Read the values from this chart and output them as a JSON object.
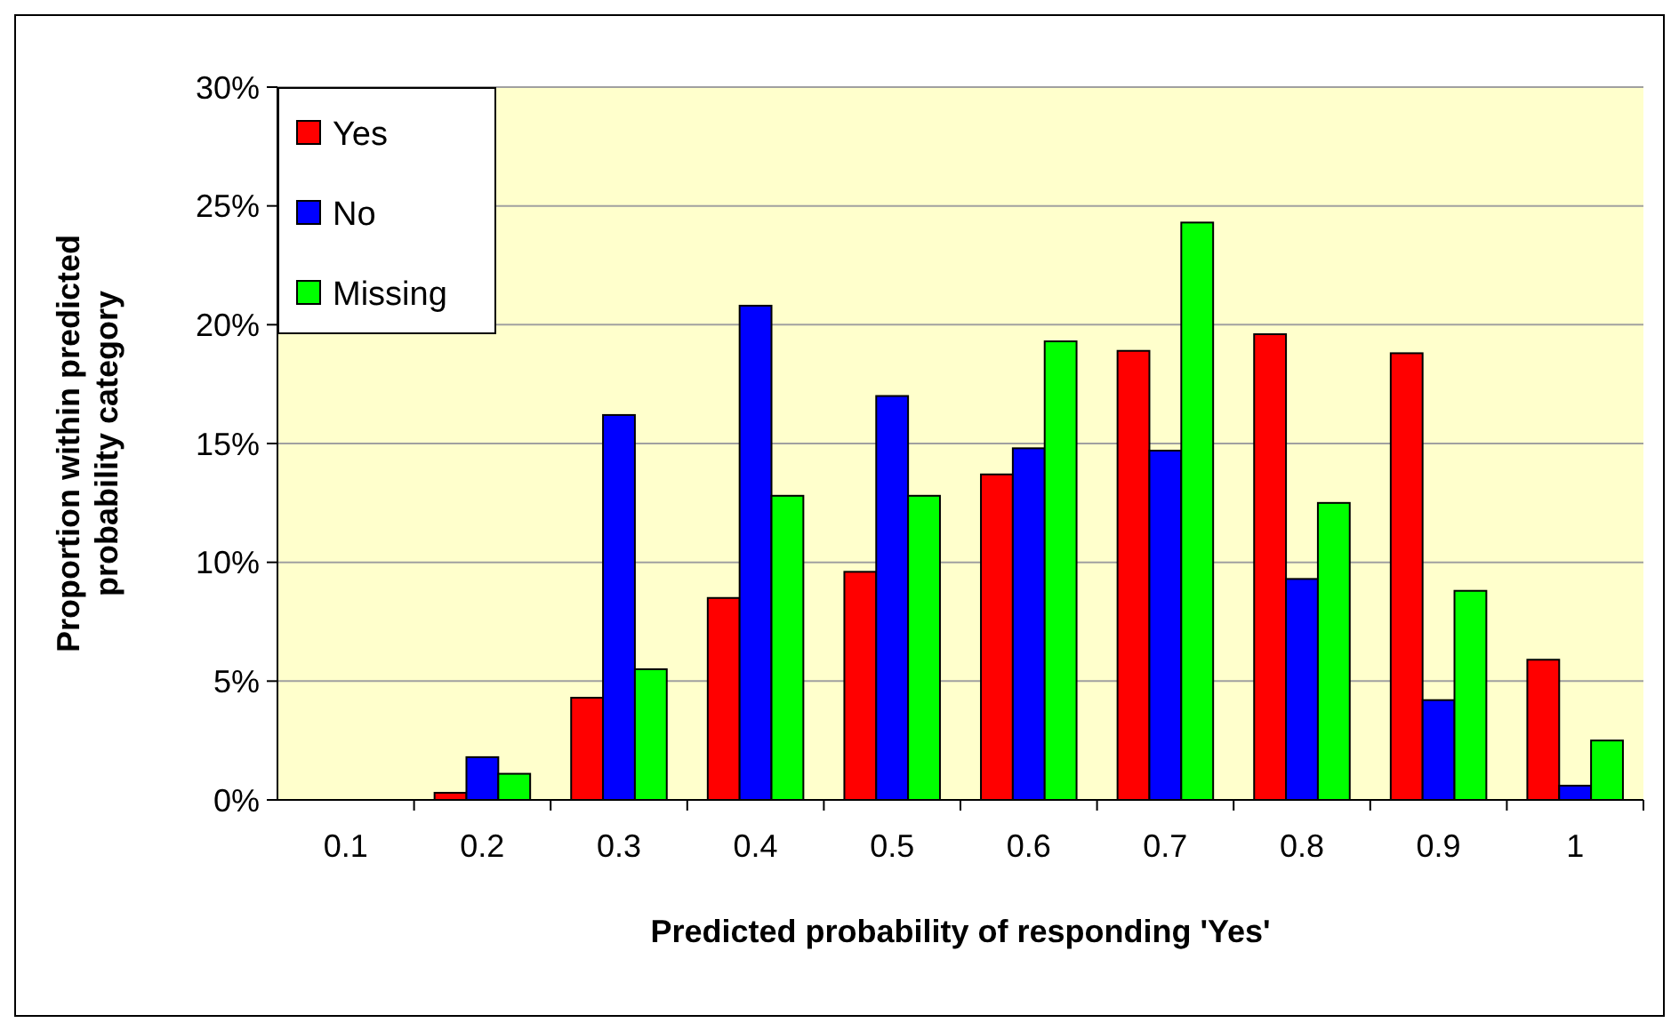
{
  "chart_data": {
    "type": "bar",
    "xlabel": "Predicted probability of responding 'Yes'",
    "ylabel": "Proportion within predicted probability category",
    "categories": [
      "0.1",
      "0.2",
      "0.3",
      "0.4",
      "0.5",
      "0.6",
      "0.7",
      "0.8",
      "0.9",
      "1"
    ],
    "series": [
      {
        "name": "Yes",
        "color": "#ff0000",
        "values": [
          0,
          0.3,
          4.3,
          8.5,
          9.6,
          13.7,
          18.9,
          19.6,
          18.8,
          5.9
        ]
      },
      {
        "name": "No",
        "color": "#0000ff",
        "values": [
          0,
          1.8,
          16.2,
          20.8,
          17.0,
          14.8,
          14.7,
          9.3,
          4.2,
          0.6
        ]
      },
      {
        "name": "Missing",
        "color": "#00ff00",
        "values": [
          0,
          1.1,
          5.5,
          12.8,
          12.8,
          19.3,
          24.3,
          12.5,
          8.8,
          2.5
        ]
      }
    ],
    "ylim": [
      0,
      30
    ],
    "yticks": [
      {
        "value": 0,
        "label": "0%"
      },
      {
        "value": 5,
        "label": "5%"
      },
      {
        "value": 10,
        "label": "10%"
      },
      {
        "value": 15,
        "label": "15%"
      },
      {
        "value": 20,
        "label": "20%"
      },
      {
        "value": 25,
        "label": "25%"
      },
      {
        "value": 30,
        "label": "30%"
      }
    ],
    "grid": "y",
    "legend": "top left"
  }
}
